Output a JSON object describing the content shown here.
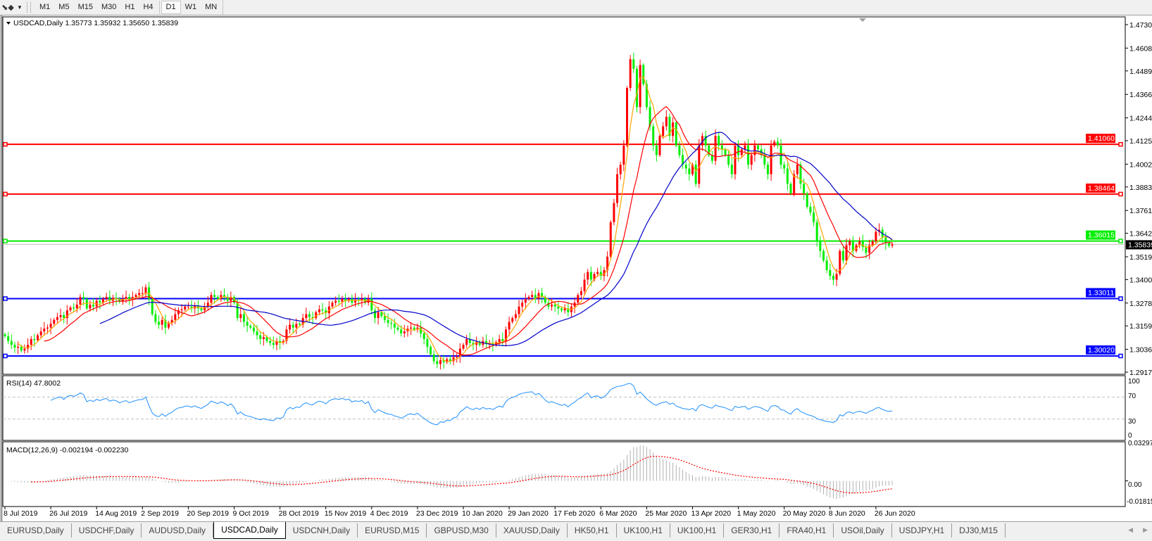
{
  "toolbar": {
    "tool_icon": "cursor-tools-icon",
    "timeframes": [
      "M1",
      "M5",
      "M15",
      "M30",
      "H1",
      "H4",
      "D1",
      "W1",
      "MN"
    ],
    "active_timeframe": "D1"
  },
  "main_pane": {
    "header": "USDCAD,Daily  1.35773 1.35932 1.35650 1.35839"
  },
  "rsi_pane": {
    "header": "RSI(14) 47.8002",
    "ticks": [
      "100",
      "70",
      "30",
      "0"
    ],
    "levels": [
      70,
      30
    ]
  },
  "macd_pane": {
    "header": "MACD(12,26,9) -0.002194 -0.002230",
    "ticks": [
      "0.032972",
      "0.00",
      "-0.01815"
    ]
  },
  "colors": {
    "bull_candle": "#ff0000",
    "bear_candle": "#00ee00",
    "ma_fast": "#ffa500",
    "ma_mid": "#ff0000",
    "ma_slow": "#0000cc",
    "rsi_line": "#1e90ff",
    "macd_hist": "#b0b0b0",
    "macd_signal": "#ff0000",
    "resistance": "#ff0000",
    "pivot": "#00ee00",
    "support": "#0000ff"
  },
  "tabs": [
    "EURUSD,Daily",
    "USDCHF,Daily",
    "AUDUSD,Daily",
    "USDCAD,Daily",
    "USDCNH,Daily",
    "EURUSD,M15",
    "GBPUSD,M30",
    "XAUUSD,Daily",
    "HK50,H1",
    "UK100,H1",
    "UK100,H1",
    "GER30,H1",
    "FRA40,H1",
    "USOil,Daily",
    "USDJPY,H1",
    "DJ30,M15"
  ],
  "active_tab": "USDCAD,Daily",
  "chart_data": {
    "type": "candlestick",
    "symbol": "USDCAD",
    "timeframe": "Daily",
    "last_bar": {
      "open": 1.35773,
      "high": 1.35932,
      "low": 1.3565,
      "close": 1.35839
    },
    "ylim": [
      1.29175,
      1.47305
    ],
    "y_ticks": [
      "1.47305",
      "1.46080",
      "1.44890",
      "1.43665",
      "1.42440",
      "1.41250",
      "1.40025",
      "1.38835",
      "1.37610",
      "1.36420",
      "1.35195",
      "1.34005",
      "1.32780",
      "1.31590",
      "1.30365",
      "1.29175"
    ],
    "x_tick_labels": [
      "8 Jul 2019",
      "26 Jul 2019",
      "14 Aug 2019",
      "2 Sep 2019",
      "20 Sep 2019",
      "9 Oct 2019",
      "28 Oct 2019",
      "15 Nov 2019",
      "4 Dec 2019",
      "23 Dec 2019",
      "10 Jan 2020",
      "29 Jan 2020",
      "17 Feb 2020",
      "6 Mar 2020",
      "25 Mar 2020",
      "13 Apr 2020",
      "1 May 2020",
      "20 May 2020",
      "8 Jun 2020",
      "26 Jun 2020"
    ],
    "horizontal_lines": [
      {
        "price": 1.4106,
        "label": "1.41060",
        "kind": "resistance"
      },
      {
        "price": 1.38464,
        "label": "1.38464",
        "kind": "resistance"
      },
      {
        "price": 1.36015,
        "label": "1.36015",
        "kind": "pivot"
      },
      {
        "price": 1.33011,
        "label": "1.33011",
        "kind": "support"
      },
      {
        "price": 1.3002,
        "label": "1.30020",
        "kind": "support"
      }
    ],
    "current_price": {
      "price": 1.35839,
      "label": "1.35839"
    },
    "moving_averages": [
      "fast",
      "mid",
      "slow"
    ],
    "closes": [
      1.3105,
      1.308,
      1.306,
      1.3045,
      1.305,
      1.303,
      1.304,
      1.306,
      1.309,
      1.3085,
      1.311,
      1.313,
      1.3145,
      1.315,
      1.317,
      1.319,
      1.3205,
      1.3215,
      1.32,
      1.324,
      1.3255,
      1.325,
      1.327,
      1.331,
      1.33,
      1.325,
      1.327,
      1.326,
      1.329,
      1.328,
      1.33,
      1.331,
      1.329,
      1.3305,
      1.33,
      1.3285,
      1.33,
      1.331,
      1.3295,
      1.331,
      1.332,
      1.333,
      1.333,
      1.336,
      1.33,
      1.322,
      1.318,
      1.3165,
      1.319,
      1.315,
      1.3175,
      1.319,
      1.322,
      1.324,
      1.3245,
      1.326,
      1.326,
      1.325,
      1.3265,
      1.325,
      1.324,
      1.326,
      1.328,
      1.332,
      1.331,
      1.33,
      1.332,
      1.331,
      1.329,
      1.331,
      1.328,
      1.32,
      1.322,
      1.318,
      1.316,
      1.315,
      1.313,
      1.311,
      1.309,
      1.31,
      1.308,
      1.307,
      1.306,
      1.308,
      1.307,
      1.308,
      1.314,
      1.3165,
      1.315,
      1.317,
      1.3165,
      1.32,
      1.322,
      1.3205,
      1.32,
      1.323,
      1.3245,
      1.324,
      1.3225,
      1.326,
      1.328,
      1.329,
      1.3285,
      1.33,
      1.329,
      1.33,
      1.328,
      1.3295,
      1.329,
      1.33,
      1.328,
      1.33,
      1.324,
      1.32,
      1.323,
      1.321,
      1.319,
      1.3175,
      1.317,
      1.315,
      1.314,
      1.312,
      1.313,
      1.3145,
      1.315,
      1.314,
      1.315,
      1.312,
      1.309,
      1.305,
      1.301,
      1.2975,
      1.296,
      1.298,
      1.297,
      1.2985,
      1.2975,
      1.2995,
      1.3,
      1.304,
      1.306,
      1.309,
      1.307,
      1.306,
      1.3075,
      1.306,
      1.308,
      1.3065,
      1.307,
      1.306,
      1.3075,
      1.309,
      1.308,
      1.314,
      1.318,
      1.32,
      1.322,
      1.326,
      1.328,
      1.33,
      1.331,
      1.332,
      1.33,
      1.333,
      1.331,
      1.328,
      1.326,
      1.327,
      1.326,
      1.325,
      1.324,
      1.325,
      1.323,
      1.326,
      1.328,
      1.332,
      1.334,
      1.34,
      1.344,
      1.34,
      1.343,
      1.344,
      1.342,
      1.345,
      1.352,
      1.37,
      1.38,
      1.395,
      1.4,
      1.41,
      1.44,
      1.455,
      1.45,
      1.43,
      1.452,
      1.442,
      1.43,
      1.42,
      1.41,
      1.405,
      1.415,
      1.42,
      1.425,
      1.415,
      1.422,
      1.41,
      1.405,
      1.4,
      1.398,
      1.395,
      1.4,
      1.39,
      1.41,
      1.415,
      1.41,
      1.405,
      1.402,
      1.415,
      1.41,
      1.408,
      1.405,
      1.4,
      1.395,
      1.41,
      1.405,
      1.408,
      1.41,
      1.4,
      1.405,
      1.41,
      1.408,
      1.405,
      1.4,
      1.395,
      1.41,
      1.412,
      1.41,
      1.4,
      1.398,
      1.39,
      1.385,
      1.395,
      1.4,
      1.39,
      1.385,
      1.378,
      1.375,
      1.37,
      1.36,
      1.355,
      1.35,
      1.345,
      1.342,
      1.34,
      1.343,
      1.355,
      1.35,
      1.358,
      1.36,
      1.355,
      1.358,
      1.36,
      1.357,
      1.354,
      1.358,
      1.36,
      1.365,
      1.366,
      1.362,
      1.359,
      1.3577,
      1.35839
    ]
  }
}
